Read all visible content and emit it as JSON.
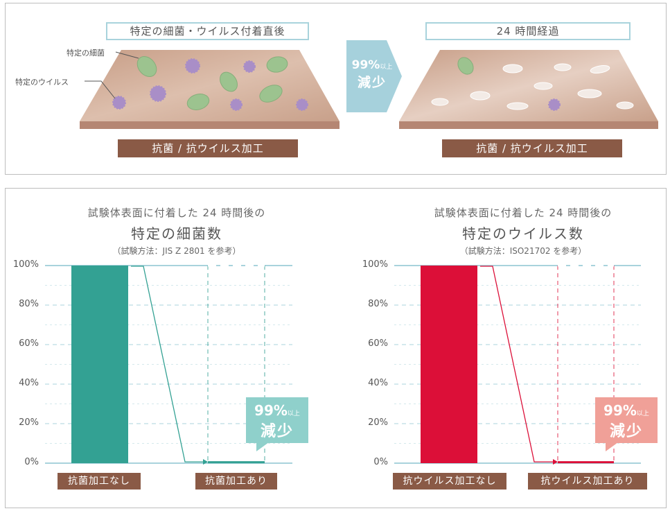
{
  "top": {
    "before_title": "特定の細菌・ウイルス付着直後",
    "after_title": "24 時間経過",
    "bacteria_label": "特定の細菌",
    "virus_label": "特定のウイルス",
    "arrow_pct": "99%",
    "arrow_up": "以上",
    "arrow_decrease": "減少",
    "before_surface": "抗菌 / 抗ウイルス加工",
    "after_surface": "抗菌 / 抗ウイルス加工"
  },
  "colors": {
    "teal": "#33a193",
    "red": "#dc0f38",
    "callout_teal": "#8fd0cb",
    "callout_pink": "#f0a098",
    "brown": "#8a5a46",
    "axis": "#a8d3dc"
  },
  "chart_data": [
    {
      "type": "bar",
      "title_line1": "試験体表面に付着した 24 時間後の",
      "title_line2": "特定の細菌数",
      "subtitle": "（試験方法：JIS Z 2801 を参考）",
      "categories": [
        "抗菌加工なし",
        "抗菌加工あり"
      ],
      "values": [
        100,
        1
      ],
      "ylim": [
        0,
        100
      ],
      "yticks": [
        "100%",
        "80%",
        "60%",
        "40%",
        "20%",
        "0%"
      ],
      "callout_pct": "99%",
      "callout_up": "以上",
      "callout_decrease": "減少",
      "grid": true
    },
    {
      "type": "bar",
      "title_line1": "試験体表面に付着した 24 時間後の",
      "title_line2": "特定のウイルス数",
      "subtitle": "（試験方法：ISO21702 を参考）",
      "categories": [
        "抗ウイルス加工なし",
        "抗ウイルス加工あり"
      ],
      "values": [
        100,
        1
      ],
      "ylim": [
        0,
        100
      ],
      "yticks": [
        "100%",
        "80%",
        "60%",
        "40%",
        "20%",
        "0%"
      ],
      "callout_pct": "99%",
      "callout_up": "以上",
      "callout_decrease": "減少",
      "grid": true
    }
  ]
}
